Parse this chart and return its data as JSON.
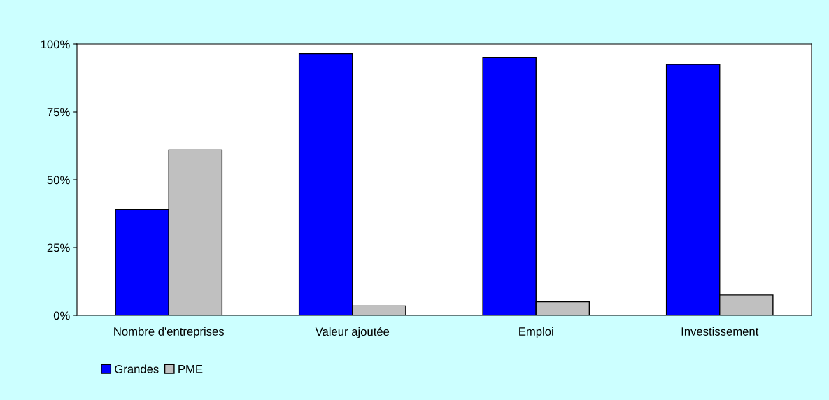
{
  "chart_data": {
    "type": "bar",
    "categories": [
      "Nombre d'entreprises",
      "Valeur ajoutée",
      "Emploi",
      "Investissement"
    ],
    "series": [
      {
        "name": "Grandes",
        "color": "#0000ff",
        "values": [
          39,
          96.5,
          95,
          92.5
        ]
      },
      {
        "name": "PME",
        "color": "#c0c0c0",
        "values": [
          61,
          3.5,
          5,
          7.5
        ]
      }
    ],
    "ylim": [
      0,
      100
    ],
    "yticks": [
      {
        "value": 0,
        "label": "0%"
      },
      {
        "value": 25,
        "label": "25%"
      },
      {
        "value": 50,
        "label": "50%"
      },
      {
        "value": 75,
        "label": "75%"
      },
      {
        "value": 100,
        "label": "100%"
      }
    ],
    "grid": false,
    "legend": "bottom left"
  }
}
